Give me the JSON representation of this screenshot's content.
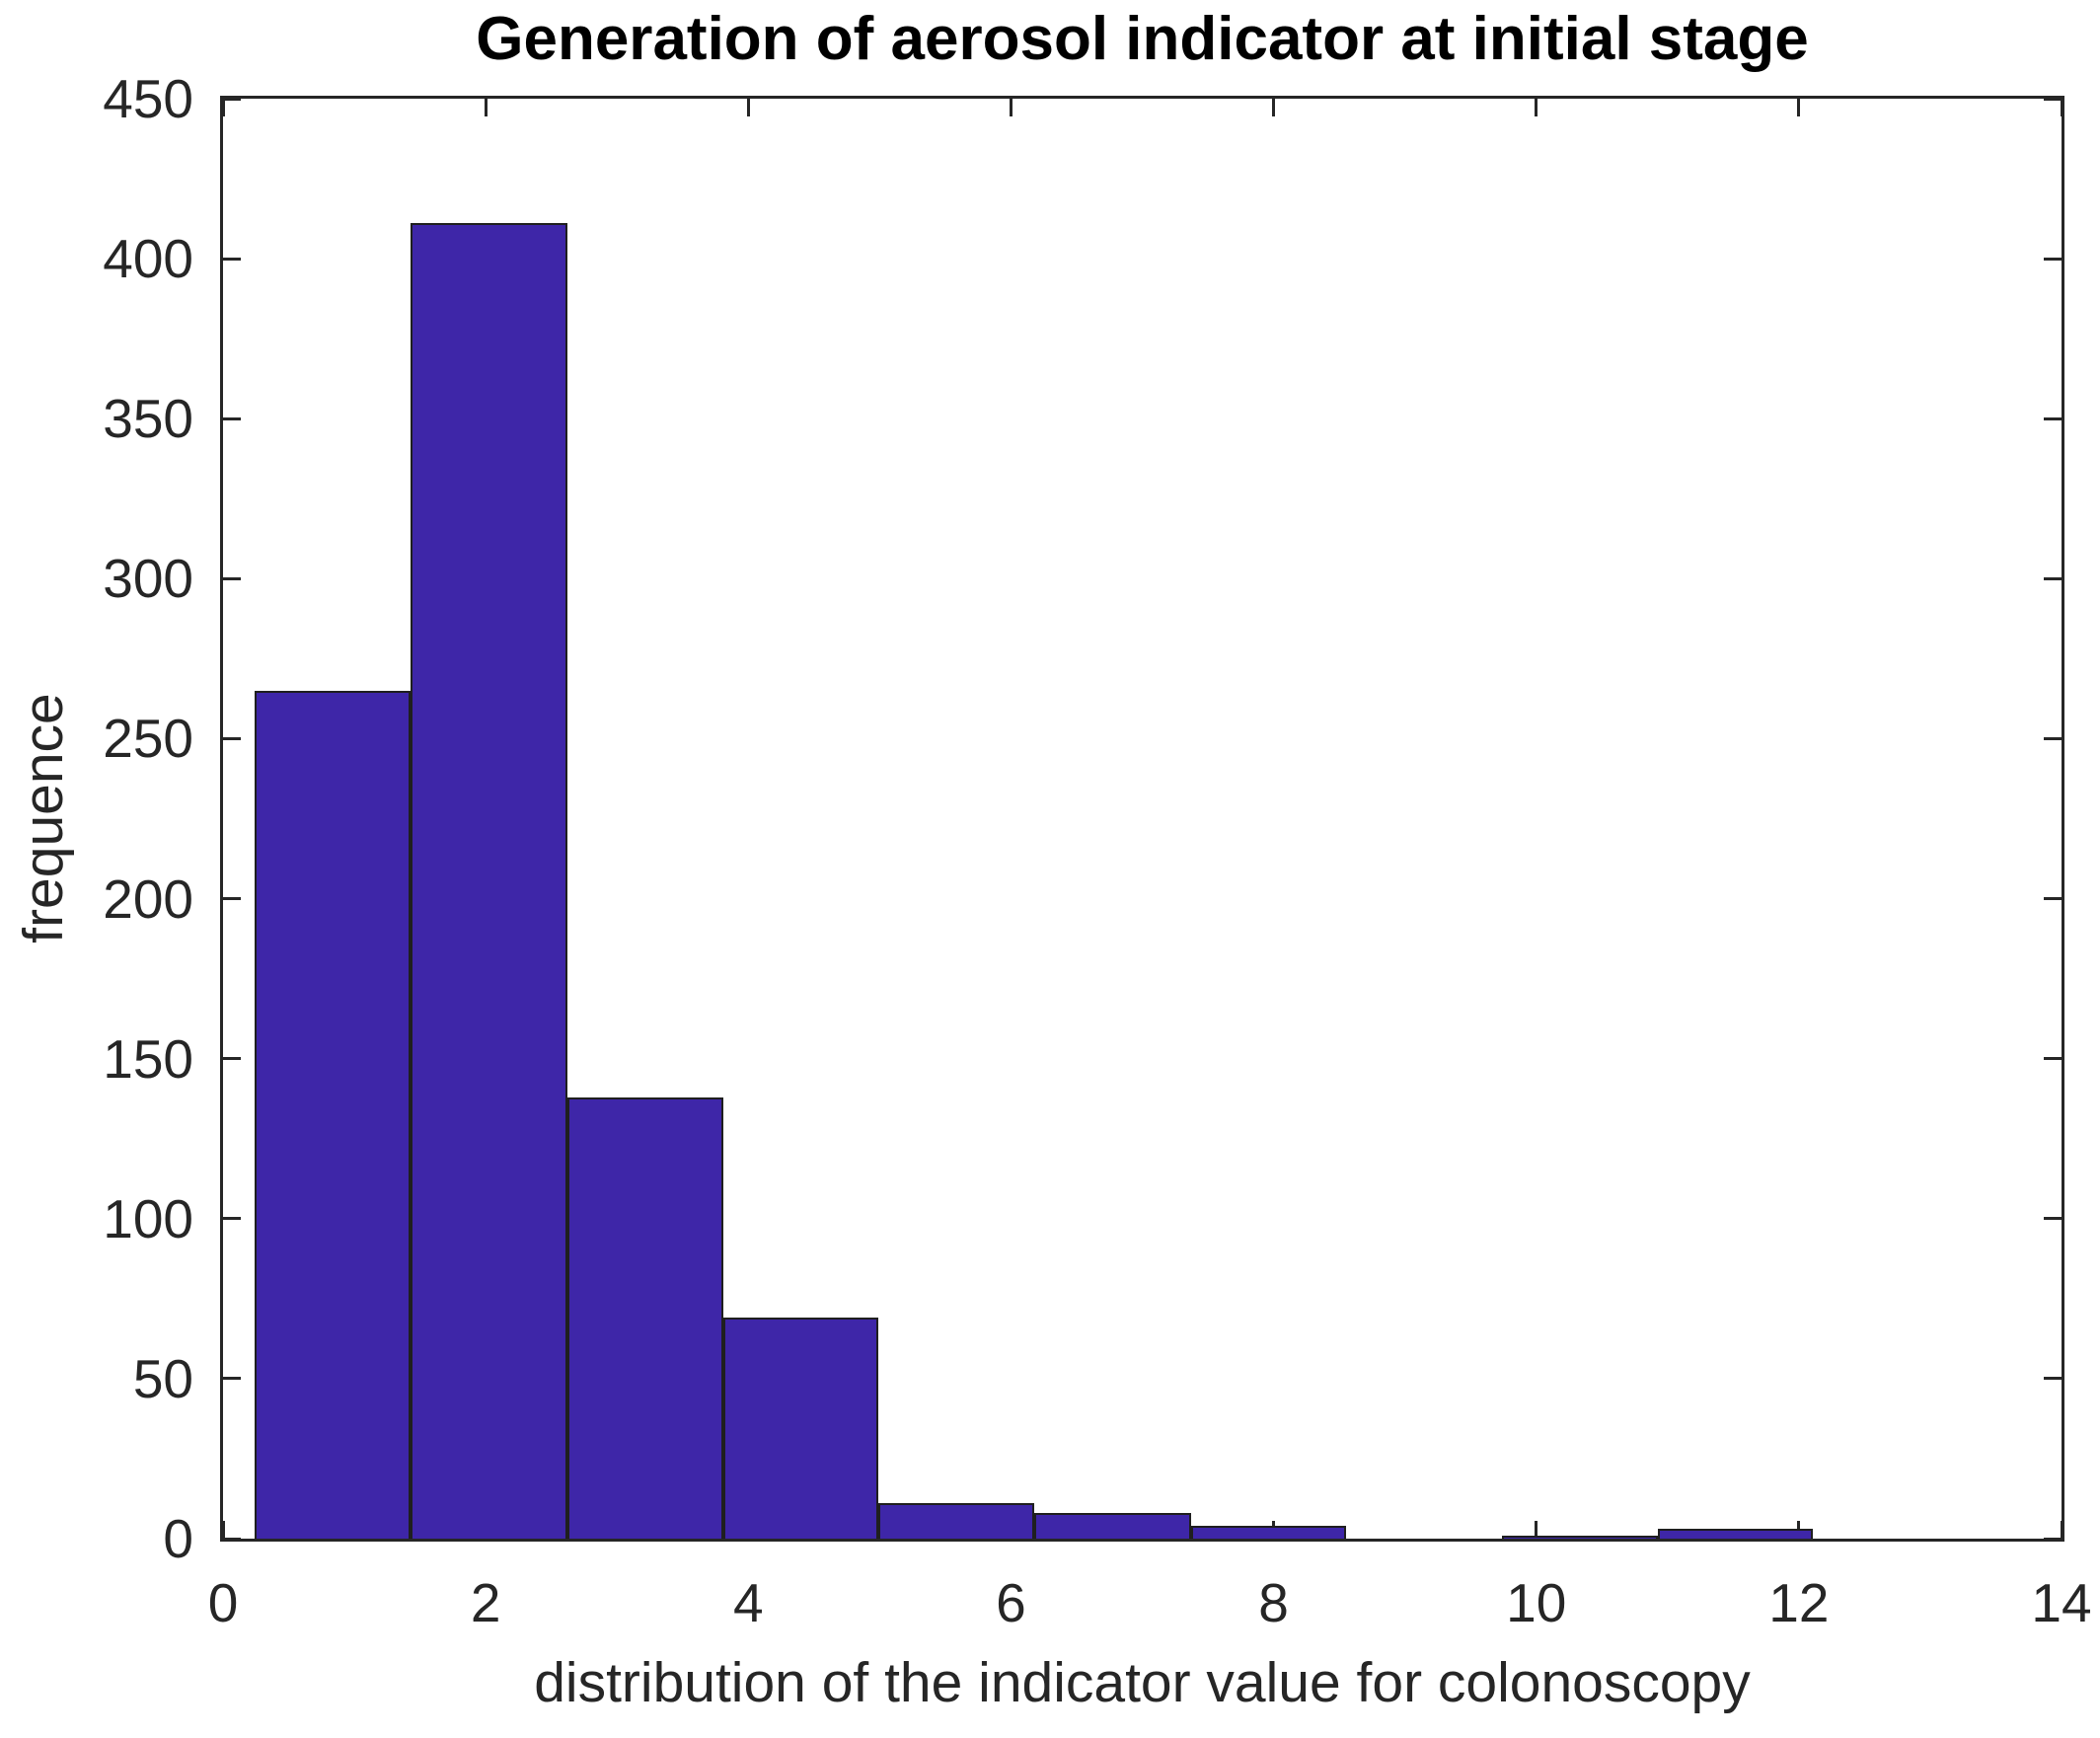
{
  "title": "Generation of aerosol indicator at initial stage",
  "xlabel": "distribution of the indicator value for colonoscopy",
  "ylabel": "frequence",
  "colors": {
    "bar_fill": "#3E26A8",
    "bar_edge": "#1F1F1F",
    "axis": "#262626",
    "title_color": "#000000",
    "background": "#FFFFFF"
  },
  "chart_data": {
    "type": "bar",
    "subtype": "histogram",
    "title": "Generation of aerosol indicator at initial stage",
    "xlabel": "distribution of the indicator value for colonoscopy",
    "ylabel": "frequence",
    "bin_edges": [
      0.24,
      1.43,
      2.62,
      3.81,
      4.99,
      6.18,
      7.37,
      8.55,
      9.74,
      10.93,
      12.11
    ],
    "counts": [
      265,
      411,
      138,
      69,
      11,
      8,
      4,
      0,
      1,
      3
    ],
    "xlim": [
      0,
      14
    ],
    "ylim": [
      0,
      450
    ],
    "x_ticks": [
      0,
      2,
      4,
      6,
      8,
      10,
      12,
      14
    ],
    "y_ticks": [
      0,
      50,
      100,
      150,
      200,
      250,
      300,
      350,
      400,
      450
    ],
    "grid": false,
    "legend": "none",
    "box": true,
    "tick_direction": "in"
  }
}
